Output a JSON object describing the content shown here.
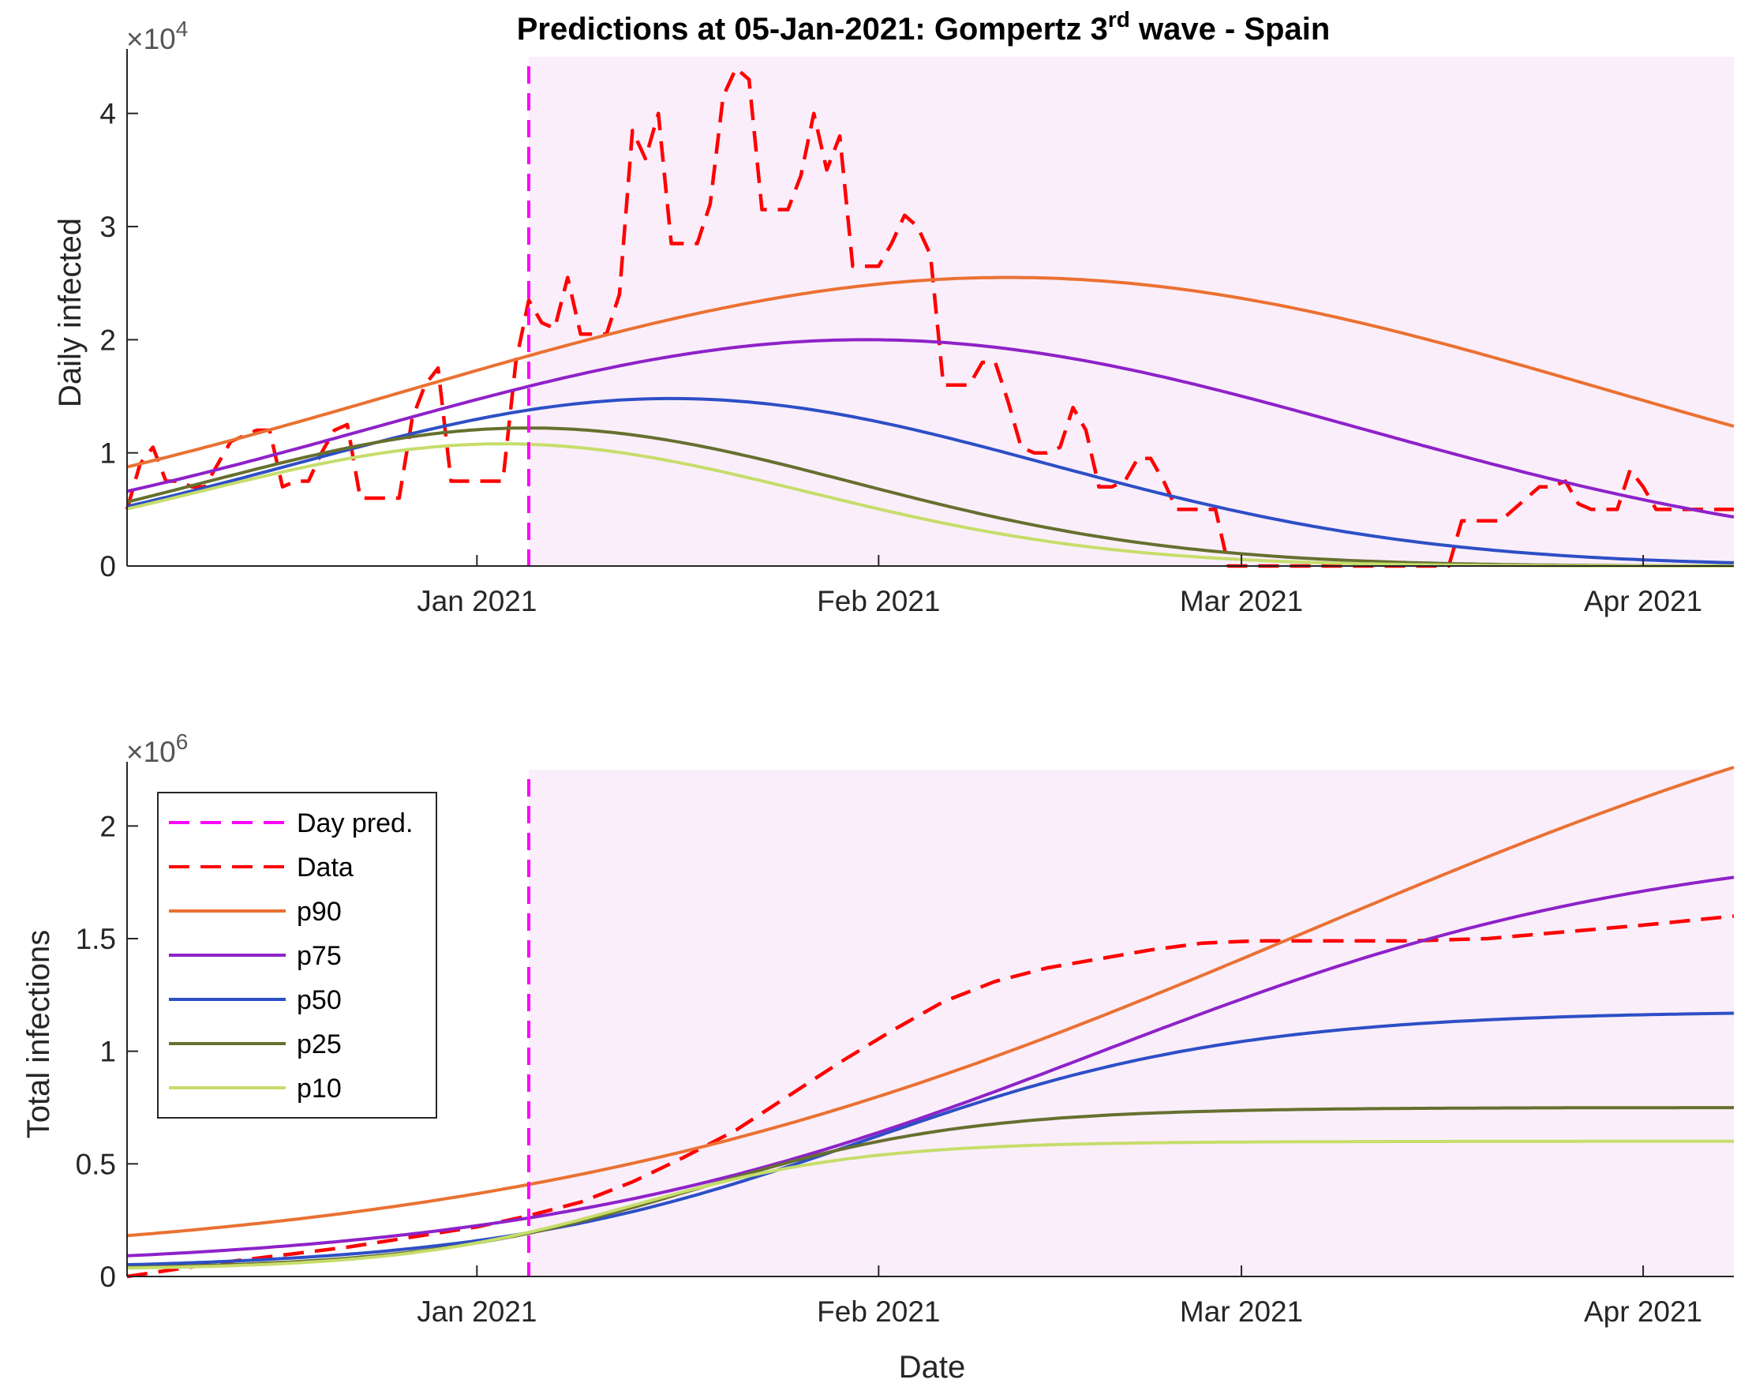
{
  "chart_data": [
    {
      "type": "line",
      "title": "Predictions at 05-Jan-2021: Gompertz 3rd wave - Spain",
      "title_prefix": "Predictions at 05-Jan-2021: Gompertz 3",
      "title_superscript": "rd",
      "title_suffix": " wave - Spain",
      "xlabel": "",
      "ylabel": "Daily infected",
      "y_exponent_label": "×10",
      "y_exponent": "4",
      "x_day_range": [
        -27,
        97
      ],
      "ylim": [
        0,
        4.5
      ],
      "yticks": [
        0,
        1,
        2,
        3,
        4
      ],
      "ytick_labels": [
        "0",
        "1",
        "2",
        "3",
        "4"
      ],
      "xticks": [
        {
          "day": 0,
          "label": "Jan 2021"
        },
        {
          "day": 31,
          "label": "Feb 2021"
        },
        {
          "day": 59,
          "label": "Mar 2021"
        },
        {
          "day": 90,
          "label": "Apr 2021"
        }
      ],
      "prediction_day": 4,
      "shaded_region_from_day": 4,
      "series": [
        {
          "name": "Data",
          "color": "#ff0000",
          "style": "dashed",
          "points": [
            [
              -27,
              0.5
            ],
            [
              -26,
              0.9
            ],
            [
              -25,
              1.05
            ],
            [
              -24,
              0.75
            ],
            [
              -23,
              0.75
            ],
            [
              -22,
              0.7
            ],
            [
              -21,
              0.7
            ],
            [
              -20,
              0.9
            ],
            [
              -19,
              1.1
            ],
            [
              -18,
              1.15
            ],
            [
              -17,
              1.2
            ],
            [
              -16,
              1.2
            ],
            [
              -15,
              0.7
            ],
            [
              -14,
              0.75
            ],
            [
              -13,
              0.75
            ],
            [
              -12,
              1.0
            ],
            [
              -11,
              1.2
            ],
            [
              -10,
              1.25
            ],
            [
              -9,
              0.6
            ],
            [
              -8,
              0.6
            ],
            [
              -7,
              0.6
            ],
            [
              -6,
              0.6
            ],
            [
              -5,
              1.3
            ],
            [
              -4,
              1.6
            ],
            [
              -3,
              1.75
            ],
            [
              -2,
              0.75
            ],
            [
              -1,
              0.75
            ],
            [
              0,
              0.75
            ],
            [
              1,
              0.75
            ],
            [
              2,
              0.75
            ],
            [
              3,
              1.8
            ],
            [
              4,
              2.35
            ],
            [
              5,
              2.15
            ],
            [
              6,
              2.1
            ],
            [
              7,
              2.55
            ],
            [
              8,
              2.05
            ],
            [
              9,
              2.05
            ],
            [
              10,
              2.05
            ],
            [
              11,
              2.4
            ],
            [
              12,
              3.85
            ],
            [
              13,
              3.6
            ],
            [
              14,
              4.0
            ],
            [
              15,
              2.85
            ],
            [
              16,
              2.85
            ],
            [
              17,
              2.85
            ],
            [
              18,
              3.2
            ],
            [
              19,
              4.15
            ],
            [
              20,
              4.4
            ],
            [
              21,
              4.3
            ],
            [
              22,
              3.15
            ],
            [
              23,
              3.15
            ],
            [
              24,
              3.15
            ],
            [
              25,
              3.45
            ],
            [
              26,
              4.0
            ],
            [
              27,
              3.5
            ],
            [
              28,
              3.8
            ],
            [
              29,
              2.65
            ],
            [
              30,
              2.65
            ],
            [
              31,
              2.65
            ],
            [
              32,
              2.85
            ],
            [
              33,
              3.1
            ],
            [
              34,
              3.0
            ],
            [
              35,
              2.75
            ],
            [
              36,
              1.6
            ],
            [
              37,
              1.6
            ],
            [
              38,
              1.6
            ],
            [
              39,
              1.8
            ],
            [
              40,
              1.8
            ],
            [
              41,
              1.45
            ],
            [
              42,
              1.05
            ],
            [
              43,
              1.0
            ],
            [
              44,
              1.0
            ],
            [
              45,
              1.05
            ],
            [
              46,
              1.4
            ],
            [
              47,
              1.2
            ],
            [
              48,
              0.7
            ],
            [
              49,
              0.7
            ],
            [
              50,
              0.75
            ],
            [
              51,
              0.95
            ],
            [
              52,
              0.95
            ],
            [
              53,
              0.75
            ],
            [
              54,
              0.5
            ],
            [
              55,
              0.5
            ],
            [
              56,
              0.5
            ],
            [
              57,
              0.5
            ],
            [
              58,
              0.0
            ],
            [
              59,
              0.0
            ],
            [
              60,
              0.0
            ],
            [
              61,
              0.0
            ],
            [
              62,
              0.0
            ],
            [
              63,
              0.0
            ],
            [
              64,
              0.0
            ],
            [
              65,
              0.0
            ],
            [
              66,
              0.0
            ],
            [
              67,
              0.0
            ],
            [
              68,
              0.0
            ],
            [
              69,
              0.0
            ],
            [
              70,
              0.0
            ],
            [
              71,
              0.0
            ],
            [
              72,
              0.0
            ],
            [
              73,
              0.0
            ],
            [
              74,
              0.0
            ],
            [
              75,
              0.0
            ],
            [
              76,
              0.4
            ],
            [
              77,
              0.4
            ],
            [
              78,
              0.4
            ],
            [
              79,
              0.4
            ],
            [
              80,
              0.5
            ],
            [
              81,
              0.6
            ],
            [
              82,
              0.7
            ],
            [
              83,
              0.7
            ],
            [
              84,
              0.75
            ],
            [
              85,
              0.55
            ],
            [
              86,
              0.5
            ],
            [
              87,
              0.5
            ],
            [
              88,
              0.5
            ],
            [
              89,
              0.85
            ],
            [
              90,
              0.7
            ],
            [
              91,
              0.5
            ],
            [
              92,
              0.5
            ],
            [
              93,
              0.5
            ],
            [
              94,
              0.5
            ],
            [
              95,
              0.5
            ],
            [
              96,
              0.5
            ],
            [
              97,
              0.5
            ]
          ]
        },
        {
          "name": "p90",
          "color": "#ea7132",
          "style": "solid",
          "model": "gauss",
          "params": {
            "A": 2.55,
            "mu": 41,
            "sigma": 46.5,
            "offset": 0
          }
        },
        {
          "name": "p75",
          "color": "#8e22c8",
          "style": "solid",
          "model": "gauss",
          "params": {
            "A": 2.0,
            "mu": 30,
            "sigma": 38.3,
            "offset": 0
          }
        },
        {
          "name": "p50",
          "color": "#2d4fc6",
          "style": "solid",
          "model": "gauss",
          "params": {
            "A": 1.48,
            "mu": 15,
            "sigma": 29.2,
            "offset": 0
          }
        },
        {
          "name": "p25",
          "color": "#66702f",
          "style": "solid",
          "model": "gauss",
          "params": {
            "A": 1.22,
            "mu": 4,
            "sigma": 25.0,
            "offset": 0
          }
        },
        {
          "name": "p10",
          "color": "#c6dd6b",
          "style": "solid",
          "model": "gauss",
          "params": {
            "A": 1.08,
            "mu": 2,
            "sigma": 23.5,
            "offset": 0
          }
        }
      ]
    },
    {
      "type": "line",
      "title": "",
      "xlabel": "Date",
      "ylabel": "Total infections",
      "y_exponent_label": "×10",
      "y_exponent": "6",
      "x_day_range": [
        -27,
        97
      ],
      "ylim": [
        0,
        2.25
      ],
      "yticks": [
        0,
        0.5,
        1,
        1.5,
        2
      ],
      "ytick_labels": [
        "0",
        "0.5",
        "1",
        "1.5",
        "2"
      ],
      "xticks": [
        {
          "day": 0,
          "label": "Jan 2021"
        },
        {
          "day": 31,
          "label": "Feb 2021"
        },
        {
          "day": 59,
          "label": "Mar 2021"
        },
        {
          "day": 90,
          "label": "Apr 2021"
        }
      ],
      "prediction_day": 4,
      "shaded_region_from_day": 4,
      "legend": {
        "placement": "top-left",
        "entries": [
          {
            "label": "Day pred.",
            "color": "#ff00ff",
            "style": "dashed"
          },
          {
            "label": "Data",
            "color": "#ff0000",
            "style": "dashed"
          },
          {
            "label": "p90",
            "color": "#ea7132",
            "style": "solid"
          },
          {
            "label": "p75",
            "color": "#8e22c8",
            "style": "solid"
          },
          {
            "label": "p50",
            "color": "#2d4fc6",
            "style": "solid"
          },
          {
            "label": "p25",
            "color": "#66702f",
            "style": "solid"
          },
          {
            "label": "p10",
            "color": "#c6dd6b",
            "style": "solid"
          }
        ]
      },
      "series": [
        {
          "name": "Data",
          "color": "#ff0000",
          "style": "dashed",
          "points": [
            [
              -27,
              0.0
            ],
            [
              -20,
              0.06
            ],
            [
              -10,
              0.13
            ],
            [
              0,
              0.22
            ],
            [
              4,
              0.27
            ],
            [
              8,
              0.33
            ],
            [
              12,
              0.42
            ],
            [
              16,
              0.53
            ],
            [
              20,
              0.65
            ],
            [
              24,
              0.8
            ],
            [
              28,
              0.95
            ],
            [
              32,
              1.09
            ],
            [
              36,
              1.22
            ],
            [
              40,
              1.31
            ],
            [
              44,
              1.37
            ],
            [
              48,
              1.41
            ],
            [
              52,
              1.45
            ],
            [
              56,
              1.48
            ],
            [
              60,
              1.49
            ],
            [
              66,
              1.49
            ],
            [
              72,
              1.49
            ],
            [
              78,
              1.5
            ],
            [
              84,
              1.53
            ],
            [
              90,
              1.56
            ],
            [
              97,
              1.6
            ]
          ]
        },
        {
          "name": "p90",
          "color": "#ea7132",
          "style": "solid",
          "model": "logistic",
          "params": {
            "K": 3.0,
            "x0": 64,
            "s": 31,
            "offset": 0.03
          }
        },
        {
          "name": "p75",
          "color": "#8e22c8",
          "style": "solid",
          "model": "logistic",
          "params": {
            "K": 1.93,
            "x0": 48,
            "s": 22,
            "offset": 0.03
          }
        },
        {
          "name": "p50",
          "color": "#2d4fc6",
          "style": "solid",
          "model": "logistic",
          "params": {
            "K": 1.15,
            "x0": 30,
            "s": 14.5,
            "offset": 0.03
          }
        },
        {
          "name": "p25",
          "color": "#66702f",
          "style": "solid",
          "model": "logistic",
          "params": {
            "K": 0.72,
            "x0": 17,
            "s": 10.5,
            "offset": 0.03
          }
        },
        {
          "name": "p10",
          "color": "#c6dd6b",
          "style": "solid",
          "model": "logistic",
          "params": {
            "K": 0.57,
            "x0": 12,
            "s": 9.0,
            "offset": 0.03
          }
        }
      ]
    }
  ],
  "colors": {
    "shade": "#fbeefb",
    "prediction_line": "#ff00ff",
    "axis": "#262626"
  }
}
